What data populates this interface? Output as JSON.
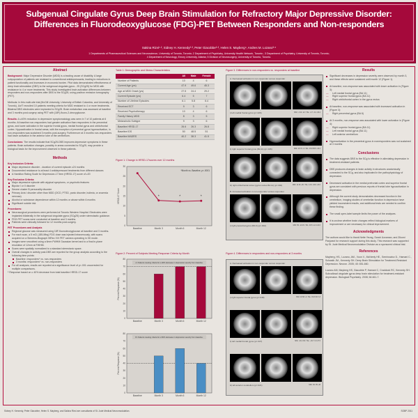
{
  "header": {
    "title1": "Subgenual Cingulate Gyrus Deep Brain Stimulation for Refractory Major Depressive Disorder:",
    "title2": "Differences in Fluorodeoxyglucose (FDG)-PET Between Responders and Non-responders",
    "authors": "Sakina Rizvi¹·², Sidney H. Kennedy²·³, Peter Giacobbe²·³, Helen S. Mayberg⁴, Andres M. Lozano³·⁵",
    "affil1": "1 Departments of Pharmaceutical Sciences and Neuroscience, University of Toronto, Toronto; 2 Department of Psychiatry, University Health Network, Toronto ; 3 Department of Psychiatry, University of Toronto, Toronto;",
    "affil2": "4 Department of Neurology, Emory University, Atlanta; 5 Division of Neurosurgery, University of Toronto, Toronto."
  },
  "abstract": {
    "heading": "Abstract",
    "bg_label": "Background:",
    "bg": "Major Depressive Disorder (MDD) is a leading cause of disability. A large subpopulation of patients are resistant to conventional antidepressants, leading to reductions in patient functionality and increases in economic burden. Pilot data demonstrated effectiveness of deep brain stimulation (DBS) to the subgenual cingulate gyrus - 25 (SCg25) for MDD with resistance to 4 or more treatments. This study investigated brain activation differences between responders and non-responders after DBS to the SCg25, using positron emission tomography (PET).",
    "methods": "Methods: In this multi-site trial (McGill University, University of British Columbia, and University of Toronto), UofT recruited 10 patients meeting criteria for MDD resistant to 4 or more treatments. Bilateral DBS electrodes were implanted to SCg25. Brain metabolism was assessed at baseline and 3 months post-surgery using PET with (18F)-fluoro-2-deoxyglucose.",
    "res_label": "Results:",
    "res": "A ≥40% reduction in depressive symptomatology was seen in 7 of 10 patients at 6 months. At baseline non-responders had greater activation than responders in the precentral gyrus, and lower activation in the superior frontal gyrus, medial frontal gyrus and orbitofrontal cortex. Hypoactivation in frontal areas, with the exception of precentral gyrus hyperactivation, in non-responders was sustained 3 months post-surgery. Furthermore at 3 months non-responders had lower activation in the anterior lobe of the cerebellum.",
    "con_label": "Conclusions:",
    "con": "The results indicate that SCg25-DBS improves depressive symptoms in these patients. Brain activation changes, possibly in areas connected to SCg25, may provide a biological basis for the improvement observed in these patients."
  },
  "methods": {
    "heading": "Methods",
    "inc_label": "Key Inclusion Criteria:",
    "inc": [
      "Major depressive disorder - duration of current episode ≥24 months",
      "Documented resistance to at least 4 antidepressant treatments from different classes",
      "A Hamilton Rating Scale for Depression-17 item (HRSD-17) score of ≥20"
    ],
    "exc_label": "Key Exclusion Criteria:",
    "exc": [
      "Major depressive episode with atypical symptoms, or psychotic features",
      "Bipolar I or II disorder",
      "Severe cluster B personality disorder",
      "Primary Axis I disorder other than MDD (OCD, PTSD, panic disorder, bulimia, or anorexia nervosa)",
      "Alcohol or substance dependence within 12 months or abuse within 6 months",
      "Significant suicide risk"
    ],
    "proc_label": "Procedures:",
    "proc": [
      "Neurosurgical procedures were performed at Toronto Western Hospital. Electrodes were implanted bilaterally in the subgenual cingulate gyrus (SCg25) under stereotactic guidance.",
      "FDG-PET scans were conducted at baseline and 3 months.",
      "Patients were clinically followed for 12 months post-surgery."
    ],
    "pet_label": "PET Procedures and Analysis",
    "pet": [
      "Regional glucose was measured using 18F-fluorodeoxyglucose at baseline and 3 months.",
      "For each scan, a 5 mCi (185-Mbq) FDG dose was injected intravenously, with scans acquired on a Siemens-Biograph HiRez XVI PET camera operating in 3D mode.",
      "Images were smoothed using a 6mm FWHM Gaussian kernel and to a final in-plane resolution of 12mm at FWHM.",
      "Scans were spatially normalized to a standard stereotaxic space.",
      "Overall changes in activity post-DBS are reported for the group analysis according to the following time points:"
    ],
    "pet_sub": [
      "Baseline: responders* vs. non-responders",
      "3 months: responders* vs. non-responders"
    ],
    "pet_last": "For all analyses, results are reported at a significance level of p<.001 uncorrected for multiple comparisons.",
    "note": "* Response based on ≥ 40% decrease from total baseline HRSD-17 score"
  },
  "table1": {
    "caption": "Table 1: Demographic and Illness Characteristics",
    "columns": [
      "",
      "All",
      "Male",
      "Female"
    ],
    "rows": [
      [
        "Number of Patients",
        "10",
        "4",
        "6"
      ],
      [
        "Current Age (yrs)",
        "47.9",
        "49.6",
        "45.3"
      ],
      [
        "Age at MDD Onset (yrs)",
        "27.5",
        "24.4",
        "29.2"
      ],
      [
        "Current Episode (yrs)",
        "6.4",
        "5",
        "7"
      ],
      [
        "Number of Lifetime Episodes",
        "6.1",
        "5.8",
        "6.4"
      ],
      [
        "Received ECT",
        "9",
        "3",
        "6"
      ],
      [
        "Received Psychotherapy",
        "10",
        "4",
        "6"
      ],
      [
        "Family History MDD",
        "8",
        "3",
        "5"
      ],
      [
        "Melancholic Subtype",
        "9",
        "3",
        "6"
      ],
      [
        "Baseline HRSD-17",
        "26.6",
        "26.3",
        "26.8"
      ],
      [
        "Baseline IDS",
        "50",
        "48.5",
        "51"
      ],
      [
        "Baseline MADRS",
        "40.2",
        "38.3",
        "41.5"
      ]
    ]
  },
  "fig1": {
    "caption": "Figure 1: Change in HRSD-17scores over 12 months"
  },
  "fig2": {
    "caption": "Figure 2: Percent of Subjects Meeting Response Criteria by Month"
  },
  "chart_data": [
    {
      "type": "line",
      "categories": [
        "Baseline",
        "Month 3",
        "Month 6",
        "Month 12"
      ],
      "values": [
        26.6,
        12.8,
        12.3,
        12.6
      ],
      "ylabel": "HRSD-17 Score",
      "ylim": [
        0,
        30
      ],
      "yticks": [
        0,
        5,
        10,
        15,
        20,
        25,
        30
      ],
      "annotation": "*Month vs. Baseline, p<.0001",
      "significant": [
        false,
        true,
        true,
        true
      ],
      "color": "#b0103f",
      "grid": false
    },
    {
      "type": "bar",
      "categories": [
        "Baseline",
        "Month 3",
        "Month 6",
        "Month 12"
      ],
      "values": [
        0,
        60,
        70,
        70
      ],
      "ylabel": "Percent Response (%)",
      "ylim": [
        0,
        80
      ],
      "yticks": [
        0,
        10,
        20,
        30,
        40,
        50,
        60,
        70,
        80
      ],
      "title": "A. Patients meeting criteria for a 40% decrease in depression severity from baseline.",
      "reference_line": 70,
      "color": "#a5093b",
      "grid": false
    },
    {
      "type": "bar",
      "categories": [
        "Baseline",
        "Month 3",
        "Month 6",
        "Month 12"
      ],
      "values": [
        0,
        50,
        60,
        40
      ],
      "ylabel": "Percent Response (%)",
      "ylim": [
        0,
        80
      ],
      "yticks": [
        0,
        10,
        20,
        30,
        40,
        50,
        60,
        70,
        80
      ],
      "title": "B. Patients meeting criteria for a 50% decrease in depression severity from baseline.",
      "reference_line": 40,
      "color": "#4a8ec4",
      "grid": false
    }
  ],
  "fig3": {
    "caption": "Figure 3. Differences in non-responders vs. responders at baseline",
    "secA": "A. Decreased activation in non-responder versus responder",
    "secB": "B. Increased activation in non-responder versus responder",
    "panels": [
      {
        "label": "i) left medial frontal gyrus (p=.026)",
        "coords": "MNI: -3 42 -12 / TAL: -2.7 -3.2 -29.2"
      },
      {
        "label": "ii) right superior frontal gyrus (BA 11) (p=.015)",
        "coords": "MNI: 16 70 -4 / TAL: 15.8 65.5 -16.2"
      },
      {
        "label": "iii) right orbitofrontal cortex (gyrus rectus BA 11) (p=.002)",
        "coords": "MNI: 14 26 -26 / TAL: 13.9 -33.8 -23.6"
      },
      {
        "label": "i) right precentral gyrus (BA 6) (p=.002)",
        "coords": "MNI: 50 -14 26 / TAL: 49.5 -12.4 24.6"
      }
    ]
  },
  "fig4": {
    "caption": "Figure 4. Differences in responders and non-responders at 3 months",
    "secA": "A. Decreased activation in non-responder versus responder",
    "panels": [
      {
        "label": "i) right superior frontal gyrus (p=.048)",
        "coords": "MNI: 16 58 -4 / TAL: 15.8 63.5 -8"
      },
      {
        "label": "ii) left medial frontal gyrus (p=.047)",
        "coords": "MNI: -30 2 36 / TAL: -29.7 3.3 27.5"
      },
      {
        "label": "iii) left anterior cerebellum (p=.021)",
        "coords": "MNI: 45 -55 -28"
      }
    ]
  },
  "results": {
    "heading": "Results",
    "items": [
      {
        "text": "Significant decreases in depression severity were observed by month 3, and these effects were sustained until month 12 (Figure 1).",
        "sub": []
      },
      {
        "text": "At baseline, non-response was associated with lower activation in (Figure 3):",
        "sub": [
          "Left medial frontal gyrus (BA 11)",
          "Right superior frontal gyrus (BA 11)",
          "Right orbitofrontal cortex in the gyrus rectus"
        ]
      },
      {
        "text": "At baseline, non-response was associated with increased activation in (Figure 3):",
        "sub": [
          "Right precentral gyrus (BA 6)"
        ]
      },
      {
        "text": "At 3 months, non-response was associated with lower activation in (Figure 4):",
        "sub": [
          "Right superior frontal gyrus (BA 11)",
          "Left medial frontal gyrus (BA 11)",
          "Left anterior cerebellum"
        ]
      },
      {
        "text": "Hyperactivation in the precentral gyrus in nonresponders was not sustained at 3 months",
        "sub": []
      }
    ]
  },
  "conclusions": {
    "heading": "Conclusions",
    "items": [
      "The data suggests DBS to the SCg is effective in alleviating depression in treatment-resistant patients.",
      "DBS produces changes in brain activity in structures anatomically connected to the SCg, and also implicated in the pathophysiology of depression.",
      "Decreased activation in the medial prefrontal cortex and superior frontal gyrus are consistent with previous reports of frontal lobe hypoactivation in depression.",
      "Although the current study demonstrates decreased function in the cerebellum, imaging studies of cerebellar function in depression have yielded inconsistent results, and additional tests are needed to confirm these finding.",
      "The small open-label sample limits the power of the analyses.",
      "It is unclear whether brain changes reflect biological markers of improvement or are necessary for clinical improvement."
    ]
  },
  "ack": {
    "heading": "Acknowledgments",
    "text": "The authors would like to thank Nette Yeung, Sarah Uzzaman, and Zikomi Panjwani for research support during this study. This research was supported by St. Jude Medical Neuromodulation Division as a sponsored clinical trial."
  },
  "refs": {
    "heading": "References",
    "items": [
      "Mayberg, HS., Lozano, AM., Voon V., McNeely HE., Seminowicz D., Hamani C., Schwalb JM., Kennedy SH. Deep Brain Stimulation for Treatment-Resistant Depression. Neuron. 2005; 45: 651-660.",
      "Lozano AM, Mayberg HS, Giacobbe P, Hamani C, Craddock RC, Kennedy SH. Subcallosal cingulate gyrus deep brain stimulation for treatment-resistant depression. Biological Psychiatry. 2008; 64:461-7."
    ]
  },
  "footer": {
    "disclosure": "Sidney H. Kennedy, Peter Giacobbe, Helen S. Mayberg, and Sakina Rizvi are consultants of St. Jude Medical Neuromodulation.",
    "conf": "SOBP 2011"
  }
}
